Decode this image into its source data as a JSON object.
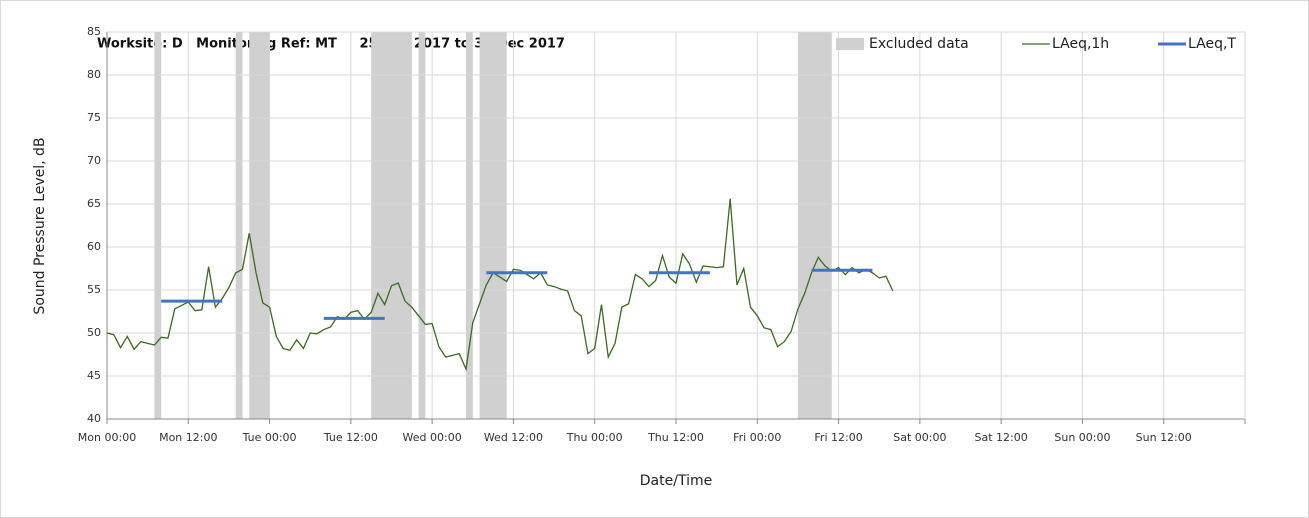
{
  "chart_data": {
    "type": "line",
    "title": "Worksite: D   Monitoring Ref: MT     25 Dec 2017 to 31 Dec 2017",
    "x_label": "Date/Time",
    "y_label": "Sound Pressure Level, dB",
    "xlim": [
      0,
      168
    ],
    "xticks": [
      {
        "value": 0,
        "label": "Mon 00:00"
      },
      {
        "value": 12,
        "label": "Mon 12:00"
      },
      {
        "value": 24,
        "label": "Tue 00:00"
      },
      {
        "value": 36,
        "label": "Tue 12:00"
      },
      {
        "value": 48,
        "label": "Wed 00:00"
      },
      {
        "value": 60,
        "label": "Wed 12:00"
      },
      {
        "value": 72,
        "label": "Thu 00:00"
      },
      {
        "value": 84,
        "label": "Thu 12:00"
      },
      {
        "value": 96,
        "label": "Fri 00:00"
      },
      {
        "value": 108,
        "label": "Fri 12:00"
      },
      {
        "value": 120,
        "label": "Sat 00:00"
      },
      {
        "value": 132,
        "label": "Sat 12:00"
      },
      {
        "value": 144,
        "label": "Sun 00:00"
      },
      {
        "value": 156,
        "label": "Sun 12:00"
      }
    ],
    "ylim": [
      40,
      85
    ],
    "yticks": [
      40,
      45,
      50,
      55,
      60,
      65,
      70,
      75,
      80,
      85
    ],
    "grid": true,
    "legend": "top-right",
    "excluded": {
      "name": "Excluded data",
      "color": "#d0d0d0",
      "ranges": [
        [
          7,
          8
        ],
        [
          19,
          20
        ],
        [
          21,
          24
        ],
        [
          39,
          45
        ],
        [
          46,
          47
        ],
        [
          53,
          54
        ],
        [
          55,
          59
        ],
        [
          102,
          107
        ]
      ]
    },
    "series": [
      {
        "name": "LAeq,1h",
        "color": "#3a6b1f",
        "x": [
          0,
          1,
          2,
          3,
          4,
          5,
          6,
          7,
          8,
          9,
          10,
          11,
          12,
          13,
          14,
          15,
          16,
          17,
          18,
          19,
          20,
          21,
          22,
          23,
          24,
          25,
          26,
          27,
          28,
          29,
          30,
          31,
          32,
          33,
          34,
          35,
          36,
          37,
          38,
          39,
          40,
          41,
          42,
          43,
          44,
          45,
          46,
          47,
          48,
          49,
          50,
          51,
          52,
          53,
          54,
          55,
          56,
          57,
          58,
          59,
          60,
          61,
          62,
          63,
          64,
          65,
          66,
          67,
          68,
          69,
          70,
          71,
          72,
          73,
          74,
          75,
          76,
          77,
          78,
          79,
          80,
          81,
          82,
          83,
          84,
          85,
          86,
          87,
          88,
          89,
          90,
          91,
          92,
          93,
          94,
          95,
          96,
          97,
          98,
          99,
          100,
          101,
          102,
          103,
          104,
          105,
          106,
          107,
          108,
          109,
          110,
          111,
          112,
          113,
          114,
          115,
          116
        ],
        "values": [
          50,
          49.8,
          48.3,
          49.6,
          48.1,
          49,
          48.8,
          48.6,
          49.5,
          49.4,
          52.8,
          53.2,
          53.6,
          52.6,
          52.7,
          57.7,
          53,
          54,
          55.3,
          57,
          57.4,
          61.6,
          57,
          53.5,
          53,
          49.6,
          48.2,
          48,
          49.2,
          48.2,
          50,
          49.9,
          50.4,
          50.7,
          51.9,
          51.6,
          52.4,
          52.6,
          51.6,
          52.4,
          54.6,
          53.3,
          55.5,
          55.8,
          53.7,
          53,
          52,
          51,
          51.1,
          48.4,
          47.2,
          47.4,
          47.6,
          45.8,
          51.2,
          53.4,
          55.6,
          57,
          56.5,
          56,
          57.4,
          57.3,
          56.8,
          56.3,
          57,
          55.6,
          55.4,
          55.1,
          54.9,
          52.6,
          52,
          47.6,
          48.2,
          53.3,
          47.2,
          48.8,
          53,
          53.4,
          56.8,
          56.3,
          55.4,
          56.1,
          59,
          56.5,
          55.8,
          59.2,
          58,
          55.9,
          57.8,
          57.7,
          57.6,
          57.7,
          65.6,
          55.6,
          57.5,
          53,
          52,
          50.6,
          50.4,
          48.4,
          49,
          50.2,
          52.8,
          54.6,
          57,
          58.8,
          57.8,
          57.2,
          57.6,
          56.8,
          57.6,
          57,
          57.4,
          57,
          56.4,
          56.6,
          54.9
        ]
      },
      {
        "name": "LAeq,T",
        "color": "#4472c4",
        "segments": [
          {
            "x": [
              8,
              17
            ],
            "value": 53.7
          },
          {
            "x": [
              32,
              41
            ],
            "value": 51.7
          },
          {
            "x": [
              56,
              65
            ],
            "value": 57
          },
          {
            "x": [
              80,
              89
            ],
            "value": 57
          },
          {
            "x": [
              104,
              113
            ],
            "value": 57.3
          }
        ]
      }
    ]
  }
}
